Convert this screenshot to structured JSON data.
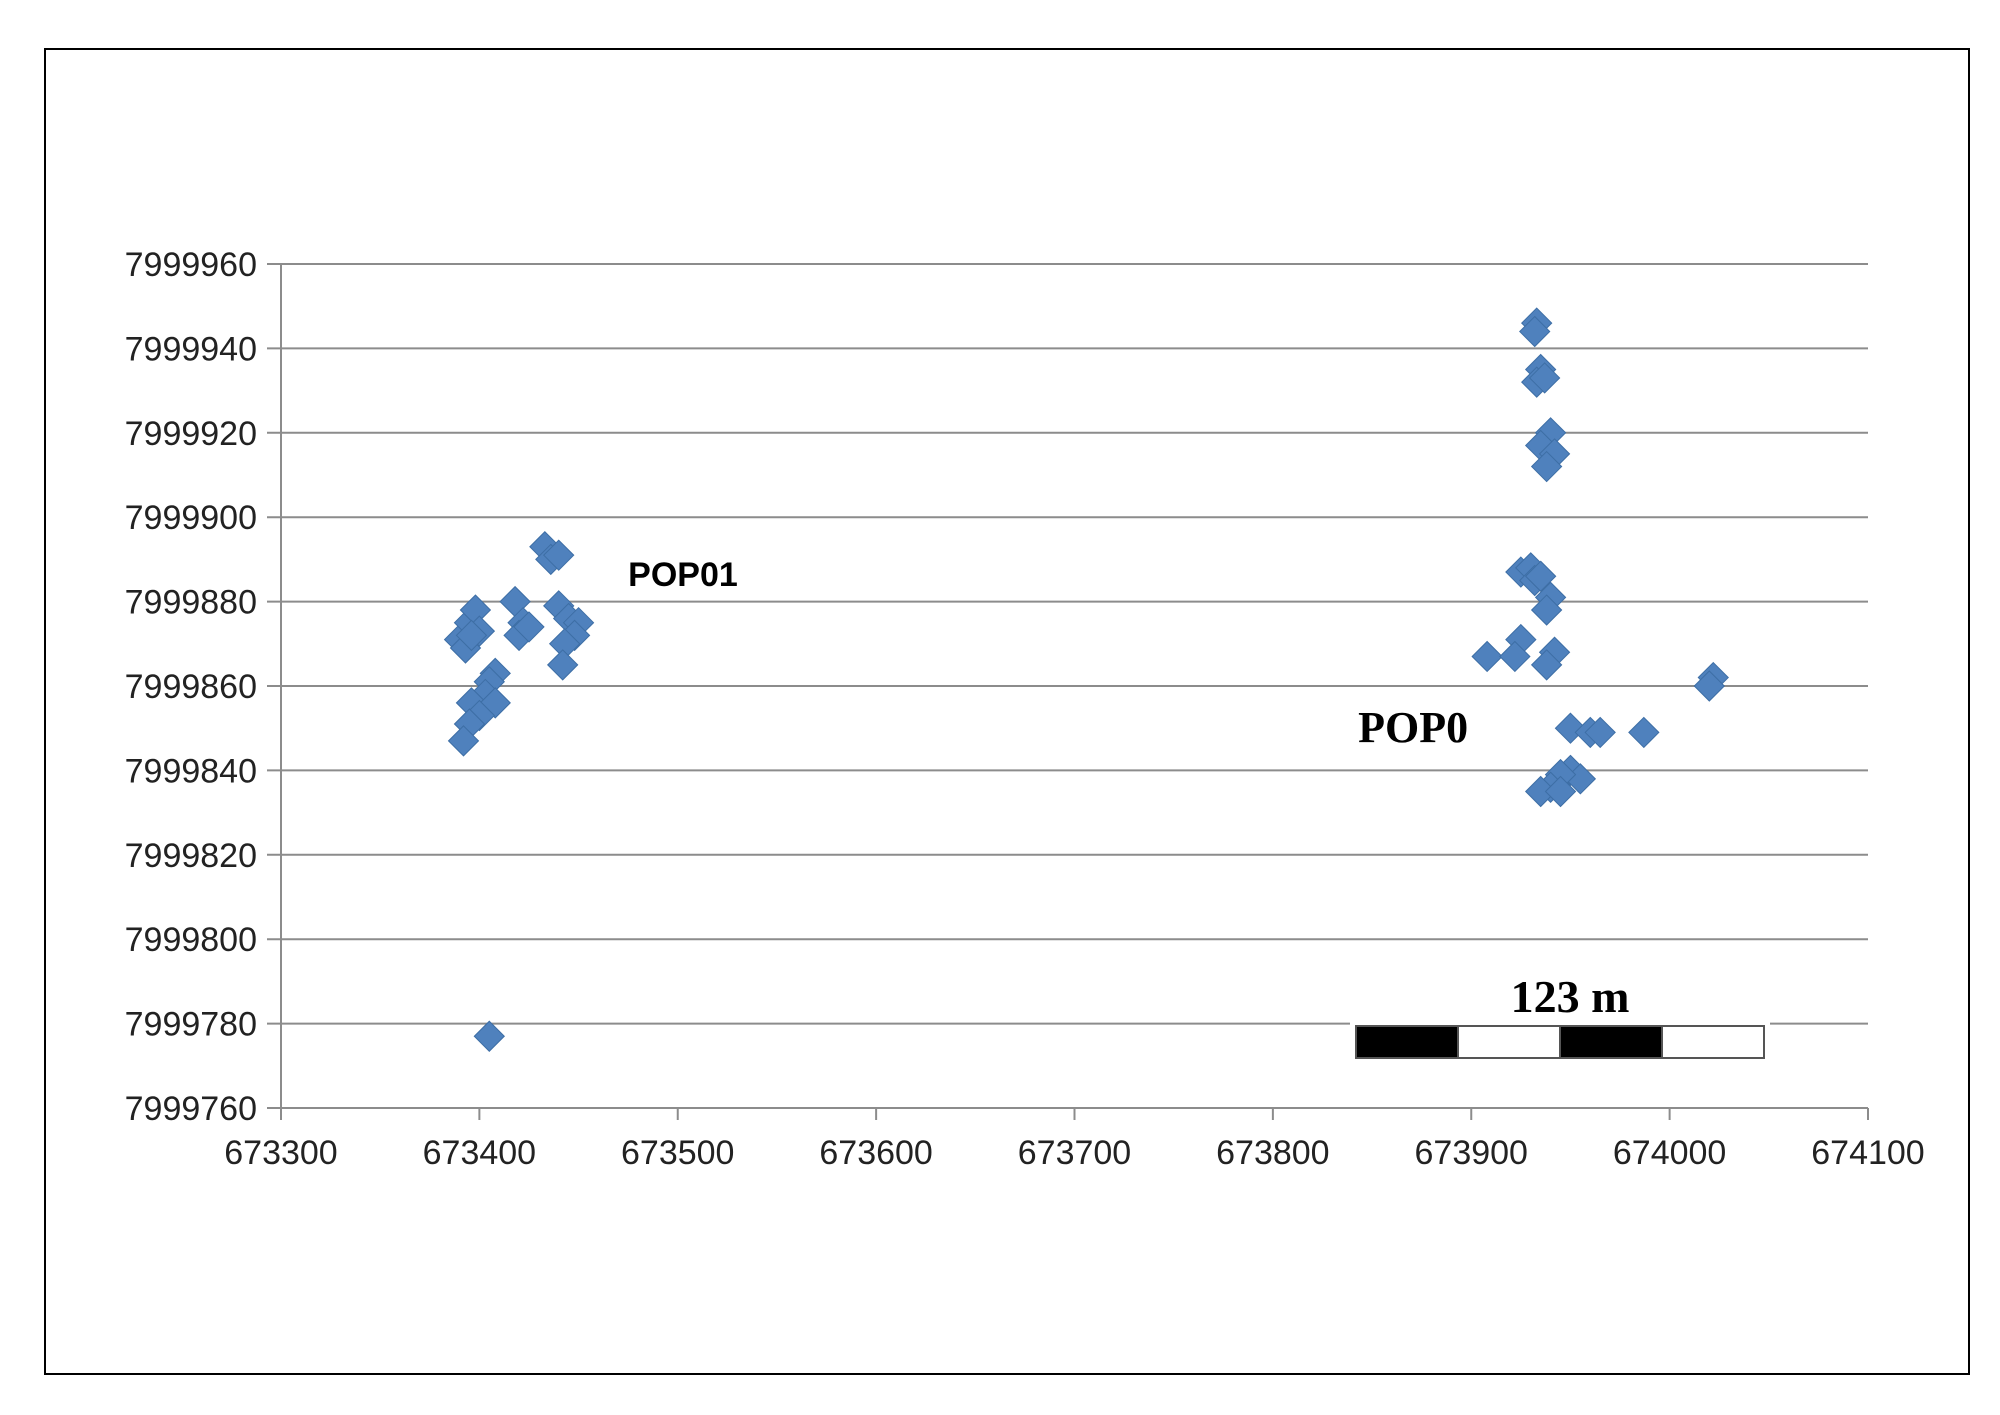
{
  "chart_data": {
    "type": "scatter",
    "title": "",
    "xlabel": "",
    "ylabel": "",
    "xlim": [
      673300,
      674100
    ],
    "ylim": [
      7999760,
      7999960
    ],
    "x_ticks": [
      673300,
      673400,
      673500,
      673600,
      673700,
      673800,
      673900,
      674000,
      674100
    ],
    "y_ticks": [
      7999760,
      7999780,
      7999800,
      7999820,
      7999840,
      7999860,
      7999880,
      7999900,
      7999920,
      7999940,
      7999960
    ],
    "grid": "horizontal",
    "marker": "diamond",
    "color": "#4f81bd",
    "series": [
      {
        "points": [
          [
            673390,
            7999871
          ],
          [
            673393,
            7999869
          ],
          [
            673395,
            7999875
          ],
          [
            673398,
            7999878
          ],
          [
            673400,
            7999873
          ],
          [
            673396,
            7999872
          ],
          [
            673418,
            7999880
          ],
          [
            673422,
            7999875
          ],
          [
            673420,
            7999872
          ],
          [
            673425,
            7999874
          ],
          [
            673433,
            7999893
          ],
          [
            673436,
            7999890
          ],
          [
            673440,
            7999891
          ],
          [
            673440,
            7999879
          ],
          [
            673445,
            7999876
          ],
          [
            673450,
            7999875
          ],
          [
            673448,
            7999872
          ],
          [
            673443,
            7999870
          ],
          [
            673442,
            7999865
          ],
          [
            673408,
            7999863
          ],
          [
            673405,
            7999861
          ],
          [
            673403,
            7999858
          ],
          [
            673396,
            7999856
          ],
          [
            673408,
            7999856
          ],
          [
            673400,
            7999853
          ],
          [
            673395,
            7999851
          ],
          [
            673392,
            7999847
          ],
          [
            673405,
            7999777
          ],
          [
            673933,
            7999946
          ],
          [
            673932,
            7999944
          ],
          [
            673935,
            7999935
          ],
          [
            673933,
            7999932
          ],
          [
            673937,
            7999933
          ],
          [
            673940,
            7999920
          ],
          [
            673935,
            7999917
          ],
          [
            673942,
            7999915
          ],
          [
            673938,
            7999912
          ],
          [
            673925,
            7999887
          ],
          [
            673930,
            7999888
          ],
          [
            673932,
            7999885
          ],
          [
            673935,
            7999886
          ],
          [
            673940,
            7999881
          ],
          [
            673938,
            7999878
          ],
          [
            673908,
            7999867
          ],
          [
            673925,
            7999871
          ],
          [
            673922,
            7999867
          ],
          [
            673942,
            7999868
          ],
          [
            673938,
            7999865
          ],
          [
            674022,
            7999862
          ],
          [
            674020,
            7999860
          ],
          [
            673950,
            7999850
          ],
          [
            673960,
            7999849
          ],
          [
            673965,
            7999849
          ],
          [
            673987,
            7999849
          ],
          [
            673950,
            7999840
          ],
          [
            673955,
            7999838
          ],
          [
            673945,
            7999839
          ],
          [
            673940,
            7999836
          ],
          [
            673935,
            7999835
          ],
          [
            673945,
            7999835
          ]
        ]
      }
    ],
    "annotations": [
      {
        "text": "POP01",
        "x": 673475,
        "y": 7999887
      },
      {
        "text": "POP0",
        "x": 673843,
        "y": 7999850
      }
    ],
    "scale_bar": {
      "label": "123 m",
      "segments": 4
    }
  }
}
